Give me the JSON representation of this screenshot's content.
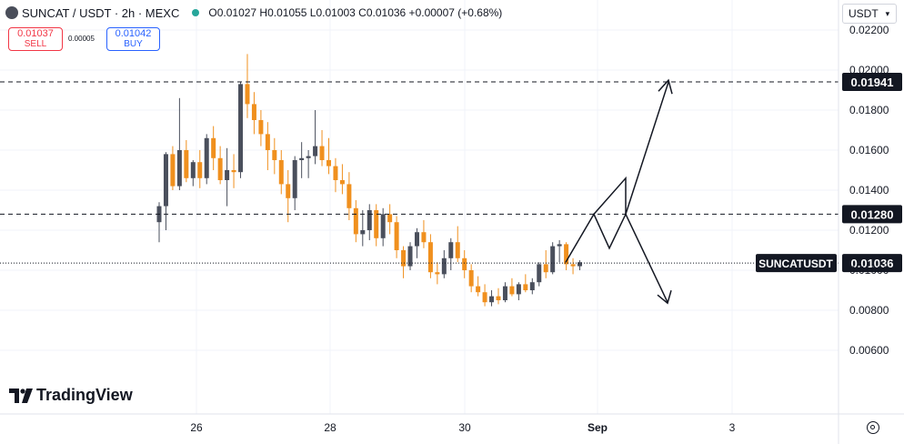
{
  "header": {
    "symbol": "SUNCAT / USDT · 2h · MEXC",
    "ohlc": "O0.01027 H0.01055 L0.01003 C0.01036 +0.00007 (+0.68%)"
  },
  "trade": {
    "sell_price": "0.01037",
    "sell_label": "SELL",
    "spread": "0.00005",
    "buy_price": "0.01042",
    "buy_label": "BUY"
  },
  "currency": {
    "label": "USDT"
  },
  "brand": {
    "name": "TradingView"
  },
  "icons": {
    "settings": "gear-icon",
    "currency_menu": "chevron-down-icon"
  },
  "colors": {
    "up": "#4a4f5c",
    "down": "#f0901e",
    "sell": "#f23645",
    "buy": "#2962ff"
  },
  "chart_data": {
    "type": "candlestick",
    "price_axis": {
      "ticks": [
        "0.02200",
        "0.02000",
        "0.01800",
        "0.01600",
        "0.01400",
        "0.01200",
        "0.01000",
        "0.00800",
        "0.00600"
      ],
      "range": [
        0.0044,
        0.0228
      ]
    },
    "time_axis": {
      "ticks": [
        "26",
        "28",
        "30",
        "Sep",
        "3"
      ]
    },
    "grid": true,
    "levels": [
      {
        "price": 0.01941,
        "label": "0.01941",
        "style": "dashed"
      },
      {
        "price": 0.0128,
        "label": "0.01280",
        "style": "dashed"
      }
    ],
    "last_price": {
      "price": 0.01036,
      "name": "SUNCATUSDT",
      "label": "0.01036",
      "style": "dotted"
    },
    "candles": [
      [
        0.0124,
        0.0134,
        0.0114,
        0.0132
      ],
      [
        0.0132,
        0.0159,
        0.012,
        0.0158
      ],
      [
        0.0158,
        0.0162,
        0.014,
        0.0142
      ],
      [
        0.0142,
        0.0186,
        0.014,
        0.016
      ],
      [
        0.016,
        0.0165,
        0.0144,
        0.0146
      ],
      [
        0.0146,
        0.0155,
        0.0142,
        0.0154
      ],
      [
        0.0154,
        0.016,
        0.0141,
        0.0146
      ],
      [
        0.0146,
        0.0168,
        0.0143,
        0.0166
      ],
      [
        0.0166,
        0.0172,
        0.015,
        0.0156
      ],
      [
        0.0156,
        0.0162,
        0.0143,
        0.0145
      ],
      [
        0.0145,
        0.0161,
        0.0132,
        0.015
      ],
      [
        0.015,
        0.0158,
        0.0141,
        0.0149
      ],
      [
        0.0149,
        0.0194,
        0.0146,
        0.0193
      ],
      [
        0.0193,
        0.0208,
        0.0176,
        0.0183
      ],
      [
        0.0183,
        0.0189,
        0.0168,
        0.0175
      ],
      [
        0.0175,
        0.018,
        0.0162,
        0.0168
      ],
      [
        0.0168,
        0.0174,
        0.015,
        0.016
      ],
      [
        0.016,
        0.0166,
        0.0148,
        0.0155
      ],
      [
        0.0155,
        0.016,
        0.0138,
        0.0143
      ],
      [
        0.0143,
        0.015,
        0.0124,
        0.0136
      ],
      [
        0.0136,
        0.0157,
        0.013,
        0.0155
      ],
      [
        0.0155,
        0.0164,
        0.0146,
        0.0156
      ],
      [
        0.0156,
        0.016,
        0.0146,
        0.0157
      ],
      [
        0.0157,
        0.018,
        0.0153,
        0.0162
      ],
      [
        0.0162,
        0.017,
        0.0152,
        0.0155
      ],
      [
        0.0155,
        0.0166,
        0.0148,
        0.0152
      ],
      [
        0.0152,
        0.0156,
        0.0139,
        0.0145
      ],
      [
        0.0145,
        0.0153,
        0.0138,
        0.0143
      ],
      [
        0.0143,
        0.0149,
        0.0125,
        0.0131
      ],
      [
        0.0131,
        0.0135,
        0.0114,
        0.0118
      ],
      [
        0.0118,
        0.013,
        0.0112,
        0.012
      ],
      [
        0.012,
        0.0133,
        0.0115,
        0.013
      ],
      [
        0.013,
        0.0133,
        0.0112,
        0.0116
      ],
      [
        0.0116,
        0.0131,
        0.0112,
        0.0128
      ],
      [
        0.0128,
        0.0133,
        0.0118,
        0.0124
      ],
      [
        0.0124,
        0.0127,
        0.0106,
        0.011
      ],
      [
        0.011,
        0.0112,
        0.0096,
        0.0102
      ],
      [
        0.0102,
        0.0114,
        0.01,
        0.0112
      ],
      [
        0.0112,
        0.0121,
        0.0106,
        0.0119
      ],
      [
        0.0119,
        0.0125,
        0.0111,
        0.0114
      ],
      [
        0.0114,
        0.0118,
        0.0096,
        0.0099
      ],
      [
        0.0099,
        0.0104,
        0.0093,
        0.0098
      ],
      [
        0.0098,
        0.011,
        0.0096,
        0.0106
      ],
      [
        0.0106,
        0.0116,
        0.01,
        0.0114
      ],
      [
        0.0114,
        0.0122,
        0.0104,
        0.0106
      ],
      [
        0.0106,
        0.011,
        0.0096,
        0.01
      ],
      [
        0.01,
        0.0103,
        0.0089,
        0.0092
      ],
      [
        0.0092,
        0.0097,
        0.0087,
        0.0089
      ],
      [
        0.0089,
        0.0093,
        0.0082,
        0.0084
      ],
      [
        0.0084,
        0.009,
        0.0082,
        0.0087
      ],
      [
        0.0087,
        0.0091,
        0.0083,
        0.0085
      ],
      [
        0.0085,
        0.0094,
        0.0084,
        0.0092
      ],
      [
        0.0092,
        0.0096,
        0.0087,
        0.0088
      ],
      [
        0.0088,
        0.0094,
        0.0085,
        0.0093
      ],
      [
        0.0093,
        0.0098,
        0.0089,
        0.009
      ],
      [
        0.009,
        0.0096,
        0.0088,
        0.0094
      ],
      [
        0.0094,
        0.0104,
        0.0092,
        0.0103
      ],
      [
        0.0103,
        0.011,
        0.0096,
        0.0099
      ],
      [
        0.0099,
        0.0114,
        0.0098,
        0.0112
      ],
      [
        0.0112,
        0.0115,
        0.0104,
        0.0113
      ],
      [
        0.0113,
        0.0114,
        0.01,
        0.0103
      ],
      [
        0.0103,
        0.0106,
        0.0098,
        0.0102
      ],
      [
        0.0102,
        0.0105,
        0.01,
        0.0104
      ]
    ],
    "projection_path": [
      [
        0.0104
      ],
      [
        0.0128
      ],
      [
        0.0111
      ],
      [
        0.0146
      ],
      [
        0.0111
      ],
      [
        0.0128
      ],
      [
        0.0194
      ]
    ],
    "projection_alt": [
      0.0128,
      0.0084
    ]
  }
}
